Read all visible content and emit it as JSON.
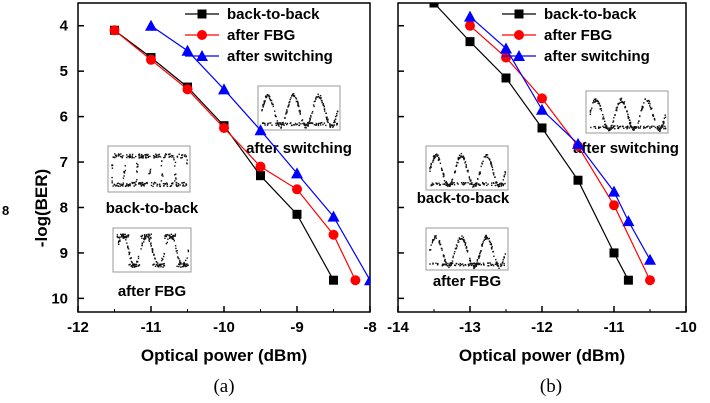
{
  "figure": {
    "side_label": "8",
    "ylabel": "-log(BER)",
    "panel_labels": [
      "(a)",
      "(b)"
    ]
  },
  "chart_data": [
    {
      "type": "line",
      "title": "",
      "xlabel": "Optical power (dBm)",
      "ylabel": "-log(BER)",
      "xlim": [
        -12,
        -8
      ],
      "ylim": [
        3.5,
        10.3
      ],
      "y_reversed": true,
      "xticks": [
        "-12",
        "-11",
        "-10",
        "-9",
        "-8"
      ],
      "yticks": [
        "4",
        "5",
        "6",
        "7",
        "8",
        "9",
        "10"
      ],
      "legend_position": "top-right",
      "series": [
        {
          "name": "back-to-back",
          "color": "#000000",
          "marker": "square",
          "x": [
            -11.5,
            -11.0,
            -10.5,
            -10.0,
            -9.5,
            -9.0,
            -8.5
          ],
          "y": [
            4.1,
            4.7,
            5.35,
            6.2,
            7.3,
            8.15,
            9.6
          ]
        },
        {
          "name": "after FBG",
          "color": "#ff0000",
          "marker": "circle",
          "x": [
            -11.5,
            -11.0,
            -10.5,
            -10.0,
            -9.5,
            -9.0,
            -8.5,
            -8.2
          ],
          "y": [
            4.1,
            4.75,
            5.4,
            6.25,
            7.1,
            7.6,
            8.6,
            9.6
          ]
        },
        {
          "name": "after switching",
          "color": "#0000ff",
          "marker": "triangle",
          "x": [
            -11.0,
            -10.5,
            -10.0,
            -9.5,
            -9.0,
            -8.5,
            -8.0
          ],
          "y": [
            4.0,
            4.55,
            5.4,
            6.3,
            7.25,
            8.2,
            9.6
          ]
        }
      ],
      "insets": [
        {
          "label": "after switching"
        },
        {
          "label": "back-to-back"
        },
        {
          "label": "after FBG"
        }
      ]
    },
    {
      "type": "line",
      "title": "",
      "xlabel": "Optical power (dBm)",
      "ylabel": "",
      "xlim": [
        -14,
        -10
      ],
      "ylim": [
        3.5,
        10.3
      ],
      "y_reversed": true,
      "xticks": [
        "-14",
        "-13",
        "-12",
        "-11",
        "-10"
      ],
      "yticks": [],
      "legend_position": "top-right",
      "series": [
        {
          "name": "back-to-back",
          "color": "#000000",
          "marker": "square",
          "x": [
            -13.5,
            -13.0,
            -12.5,
            -12.0,
            -11.5,
            -11.0,
            -10.8
          ],
          "y": [
            3.5,
            4.35,
            5.15,
            6.25,
            7.4,
            9.0,
            9.6
          ]
        },
        {
          "name": "after FBG",
          "color": "#ff0000",
          "marker": "circle",
          "x": [
            -13.0,
            -12.5,
            -12.0,
            -11.5,
            -11.0,
            -10.5
          ],
          "y": [
            4.0,
            4.7,
            5.6,
            6.65,
            7.95,
            9.6
          ]
        },
        {
          "name": "after switching",
          "color": "#0000ff",
          "marker": "triangle",
          "x": [
            -13.0,
            -12.5,
            -12.0,
            -11.5,
            -11.0,
            -10.8,
            -10.5
          ],
          "y": [
            3.8,
            4.5,
            5.85,
            6.6,
            7.65,
            8.3,
            9.15
          ]
        }
      ],
      "insets": [
        {
          "label": "after switching"
        },
        {
          "label": "back-to-back"
        },
        {
          "label": "after FBG"
        }
      ]
    }
  ]
}
